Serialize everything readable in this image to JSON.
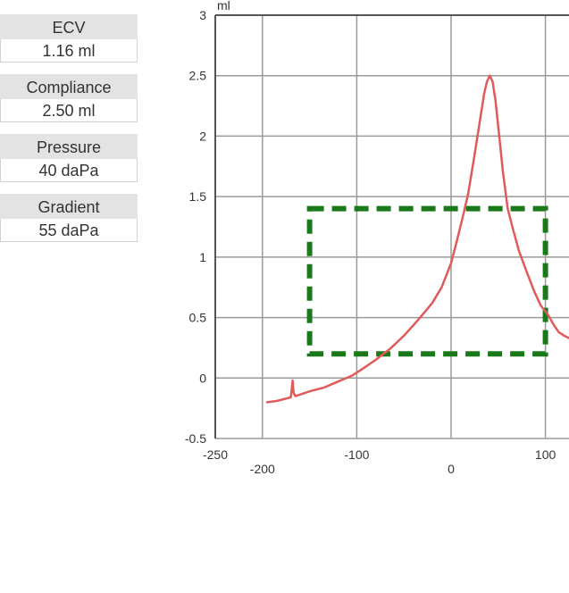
{
  "metrics": [
    {
      "label": "ECV",
      "value": "1.16 ml"
    },
    {
      "label": "Compliance",
      "value": "2.50 ml"
    },
    {
      "label": "Pressure",
      "value": "40 daPa"
    },
    {
      "label": "Gradient",
      "value": "55 daPa"
    }
  ],
  "chart_data": {
    "type": "line",
    "title": "",
    "ylabel": "ml",
    "xlabel": "",
    "xlim": [
      -250,
      125
    ],
    "ylim": [
      -0.5,
      3
    ],
    "x_ticks": [
      {
        "value": -250,
        "label": "-250",
        "row": 1
      },
      {
        "value": -200,
        "label": "-200",
        "row": 2
      },
      {
        "value": -100,
        "label": "-100",
        "row": 1
      },
      {
        "value": 0,
        "label": "0",
        "row": 2
      },
      {
        "value": 100,
        "label": "100",
        "row": 1
      }
    ],
    "y_ticks": [
      {
        "value": 3,
        "label": "3"
      },
      {
        "value": 2.5,
        "label": "2.5"
      },
      {
        "value": 2,
        "label": "2"
      },
      {
        "value": 1.5,
        "label": "1.5"
      },
      {
        "value": 1,
        "label": "1"
      },
      {
        "value": 0.5,
        "label": "0.5"
      },
      {
        "value": 0,
        "label": "0"
      },
      {
        "value": -0.5,
        "label": "-0.5"
      }
    ],
    "grid": true,
    "series": [
      {
        "color": "#e05a5a",
        "points": [
          [
            -195,
            -0.2
          ],
          [
            -185,
            -0.19
          ],
          [
            -175,
            -0.17
          ],
          [
            -170,
            -0.16
          ],
          [
            -169,
            -0.1
          ],
          [
            -168,
            -0.02
          ],
          [
            -167,
            -0.12
          ],
          [
            -165,
            -0.15
          ],
          [
            -150,
            -0.11
          ],
          [
            -135,
            -0.08
          ],
          [
            -120,
            -0.03
          ],
          [
            -105,
            0.02
          ],
          [
            -95,
            0.07
          ],
          [
            -80,
            0.15
          ],
          [
            -65,
            0.24
          ],
          [
            -50,
            0.35
          ],
          [
            -35,
            0.48
          ],
          [
            -20,
            0.62
          ],
          [
            -10,
            0.75
          ],
          [
            -5,
            0.85
          ],
          [
            0,
            0.95
          ],
          [
            5,
            1.1
          ],
          [
            12,
            1.32
          ],
          [
            18,
            1.52
          ],
          [
            24,
            1.8
          ],
          [
            30,
            2.1
          ],
          [
            35,
            2.35
          ],
          [
            38,
            2.45
          ],
          [
            41,
            2.5
          ],
          [
            44,
            2.45
          ],
          [
            47,
            2.3
          ],
          [
            51,
            2.0
          ],
          [
            55,
            1.7
          ],
          [
            60,
            1.4
          ],
          [
            65,
            1.25
          ],
          [
            72,
            1.05
          ],
          [
            80,
            0.88
          ],
          [
            88,
            0.72
          ],
          [
            95,
            0.6
          ],
          [
            103,
            0.52
          ],
          [
            108,
            0.45
          ],
          [
            114,
            0.38
          ],
          [
            120,
            0.35
          ],
          [
            125,
            0.33
          ]
        ]
      }
    ],
    "box": {
      "x": [
        -150,
        100
      ],
      "y": [
        0.2,
        1.4
      ],
      "color": "#1a7a1a",
      "style": "dashed"
    }
  }
}
